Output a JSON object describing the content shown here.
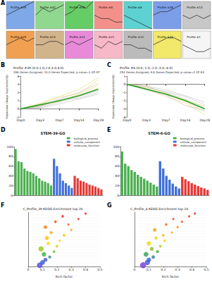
{
  "chart_data": [
    {
      "type": "small_multiples",
      "annotations": [
        "A"
      ],
      "ylim": [
        -4,
        4
      ],
      "tick_labels": false,
      "series": [
        {
          "name": "Profile #39",
          "color": "#7fa8e8",
          "values": [
            0,
            1,
            2,
            3,
            4
          ]
        },
        {
          "name": "Profile #42",
          "color": "#90d890",
          "values": [
            0,
            2,
            1,
            2,
            3
          ]
        },
        {
          "name": "Profile #46",
          "color": "#66cc66",
          "values": [
            0,
            1,
            3,
            2,
            4
          ]
        },
        {
          "name": "Profile #8",
          "color": "#f4908a",
          "values": [
            0,
            -1,
            -1,
            -2,
            -2
          ]
        },
        {
          "name": "Profile #6",
          "color": "#5ed2d2",
          "values": [
            0,
            -1,
            -2,
            -3,
            -4
          ]
        },
        {
          "name": "Profile #38",
          "color": "#7c9ee8",
          "values": [
            0,
            1,
            1,
            2,
            3
          ]
        },
        {
          "name": "Profile #10",
          "color": "#c8c8c8",
          "values": [
            0,
            -1,
            0,
            -1,
            0
          ]
        },
        {
          "name": "Profile #29",
          "color": "#f0a050",
          "values": [
            0,
            1,
            2,
            1,
            2
          ]
        },
        {
          "name": "Profile #14",
          "color": "#d2b48c",
          "values": [
            0,
            0,
            1,
            1,
            0
          ]
        },
        {
          "name": "Profile #33",
          "color": "#e88ad8",
          "values": [
            0,
            1,
            0,
            1,
            2
          ]
        },
        {
          "name": "Profile #21",
          "color": "#f7b8c8",
          "values": [
            0,
            -1,
            1,
            0,
            1
          ]
        },
        {
          "name": "Profile #12",
          "color": "#bbbbbb",
          "values": [
            0,
            0,
            -1,
            -1,
            -2
          ]
        },
        {
          "name": "Profile #40",
          "color": "#f2e86a",
          "values": [
            0,
            1,
            2,
            2,
            1
          ]
        },
        {
          "name": "Profile #1",
          "color": "#f5f5f5",
          "values": [
            0,
            -1,
            -2,
            -2,
            -1
          ]
        }
      ]
    },
    {
      "type": "line",
      "annotations": [
        "B"
      ],
      "title": "Profile #39 (0.0,1.0,2.0,3.0,4.0)",
      "subtitle": "286 Genes Assigned; 10.0 Genes Expected; p-value=1.4E-97",
      "ylabel": "Expression Change (log2(v(i)/v(0)))",
      "x": [
        "Day0",
        "Day3",
        "Day7",
        "Day14",
        "Day28"
      ],
      "ylim": [
        -1,
        4
      ],
      "yticks": [
        -1,
        0,
        1,
        2,
        3,
        4
      ],
      "series": [
        {
          "color": "#b0b0b0",
          "line_style": "thin",
          "values": [
            0,
            0.3,
            1.2,
            2.0,
            3.1
          ]
        },
        {
          "color": "#e6c84a",
          "line_style": "thin",
          "values": [
            0,
            0.5,
            1.0,
            1.6,
            2.6
          ]
        },
        {
          "color": "#b0b0b0",
          "line_style": "thin",
          "values": [
            0,
            0.2,
            0.8,
            1.5,
            2.2
          ]
        },
        {
          "color": "#e6c84a",
          "line_style": "thin",
          "values": [
            0,
            0.6,
            1.4,
            1.9,
            3.5
          ]
        },
        {
          "color": "#b0b0b0",
          "line_style": "thin",
          "values": [
            0,
            0.1,
            0.6,
            1.2,
            1.8
          ]
        },
        {
          "color": "#e6c84a",
          "line_style": "thin",
          "values": [
            0,
            0.4,
            0.9,
            1.8,
            2.9
          ]
        },
        {
          "color": "#b0b0b0",
          "line_style": "thin",
          "values": [
            0,
            0.3,
            1.1,
            1.3,
            2.0
          ]
        },
        {
          "color": "#e6c84a",
          "line_style": "thin",
          "values": [
            0,
            0.7,
            1.5,
            2.4,
            3.8
          ]
        },
        {
          "color": "#2ca02c",
          "line_style": "thick",
          "values": [
            0,
            0.5,
            1.0,
            1.6,
            2.4
          ]
        }
      ]
    },
    {
      "type": "line",
      "annotations": [
        "C"
      ],
      "title": "Profile #6 (0.0,-1.0,-2.0,-3.0,-4.0)",
      "subtitle": "254 Genes Assigned; 9.8 Genes Expected; p-value=2.1E-84",
      "ylabel": "Expression Change (log2(v(i)/v(0)))",
      "x": [
        "Day0",
        "Day3",
        "Day7",
        "Day14",
        "Day28"
      ],
      "ylim": [
        -4,
        1
      ],
      "yticks": [
        -4,
        -3,
        -2,
        -1,
        0,
        1
      ],
      "series": [
        {
          "color": "#b0b0b0",
          "line_style": "thin",
          "values": [
            0,
            -0.3,
            -1.0,
            -1.8,
            -2.9
          ]
        },
        {
          "color": "#e6c84a",
          "line_style": "thin",
          "values": [
            0,
            -0.5,
            -1.2,
            -2.1,
            -3.4
          ]
        },
        {
          "color": "#b0b0b0",
          "line_style": "thin",
          "values": [
            0,
            -0.2,
            -0.7,
            -1.4,
            -2.2
          ]
        },
        {
          "color": "#e6c84a",
          "line_style": "thin",
          "values": [
            0,
            -0.6,
            -1.5,
            -2.3,
            -3.7
          ]
        },
        {
          "color": "#b0b0b0",
          "line_style": "thin",
          "values": [
            0,
            -0.4,
            -0.9,
            -1.5,
            -2.5
          ]
        },
        {
          "color": "#e6c84a",
          "line_style": "thin",
          "values": [
            0,
            -0.2,
            -1.1,
            -1.9,
            -2.7
          ]
        },
        {
          "color": "#b0b0b0",
          "line_style": "thin",
          "values": [
            0,
            -0.7,
            -1.3,
            -2.6,
            -3.2
          ]
        },
        {
          "color": "#2ca02c",
          "line_style": "thick",
          "values": [
            0,
            -0.6,
            -1.2,
            -2.0,
            -3.0
          ]
        }
      ]
    },
    {
      "type": "bar",
      "annotations": [
        "D"
      ],
      "title": "STEM-39-GO",
      "legend": "top-right",
      "categories": [
        null,
        null,
        null,
        null,
        null,
        null,
        null,
        null,
        null,
        null,
        null,
        null,
        null,
        null,
        null,
        null,
        null,
        null,
        null,
        null,
        null,
        null,
        null,
        null,
        null,
        null,
        null,
        null,
        null,
        null
      ],
      "ylim": [
        0,
        100
      ],
      "yticks": [
        0,
        20,
        40,
        60,
        80,
        100
      ],
      "series": [
        {
          "name": "biological_process",
          "color": "#4caf50",
          "values": [
            95,
            70,
            68,
            55,
            50,
            48,
            45,
            40,
            35,
            30,
            28,
            25,
            20,
            null,
            null,
            null,
            null,
            null,
            null,
            null,
            null,
            null,
            null,
            null,
            null,
            null,
            null,
            null,
            null,
            null
          ]
        },
        {
          "name": "cellular_component",
          "color": "#3f6fd8",
          "values": [
            null,
            null,
            null,
            null,
            null,
            null,
            null,
            null,
            null,
            null,
            null,
            null,
            null,
            75,
            60,
            45,
            30,
            25,
            20,
            15,
            null,
            null,
            null,
            null,
            null,
            null,
            null,
            null,
            null,
            null
          ]
        },
        {
          "name": "molecular_function",
          "color": "#e53935",
          "values": [
            null,
            null,
            null,
            null,
            null,
            null,
            null,
            null,
            null,
            null,
            null,
            null,
            null,
            null,
            null,
            null,
            null,
            null,
            null,
            null,
            40,
            35,
            30,
            28,
            25,
            22,
            20,
            18,
            15,
            12
          ]
        }
      ]
    },
    {
      "type": "bar",
      "annotations": [
        "E"
      ],
      "title": "STEM-6-GO",
      "legend": "top-right",
      "categories": [
        null,
        null,
        null,
        null,
        null,
        null,
        null,
        null,
        null,
        null,
        null,
        null,
        null,
        null,
        null,
        null,
        null,
        null,
        null,
        null,
        null,
        null,
        null,
        null,
        null,
        null,
        null,
        null
      ],
      "ylim": [
        0,
        100
      ],
      "yticks": [
        0,
        20,
        40,
        60,
        80,
        100
      ],
      "series": [
        {
          "name": "biological_process",
          "color": "#4caf50",
          "values": [
            90,
            65,
            60,
            52,
            48,
            42,
            38,
            34,
            30,
            26,
            22,
            18,
            null,
            null,
            null,
            null,
            null,
            null,
            null,
            null,
            null,
            null,
            null,
            null,
            null,
            null,
            null,
            null
          ]
        },
        {
          "name": "cellular_component",
          "color": "#3f6fd8",
          "values": [
            null,
            null,
            null,
            null,
            null,
            null,
            null,
            null,
            null,
            null,
            null,
            null,
            70,
            55,
            40,
            32,
            24,
            18,
            14,
            null,
            null,
            null,
            null,
            null,
            null,
            null,
            null,
            null
          ]
        },
        {
          "name": "molecular_function",
          "color": "#e53935",
          "values": [
            null,
            null,
            null,
            null,
            null,
            null,
            null,
            null,
            null,
            null,
            null,
            null,
            null,
            null,
            null,
            null,
            null,
            null,
            null,
            38,
            33,
            29,
            25,
            22,
            19,
            16,
            14,
            11
          ]
        }
      ]
    },
    {
      "type": "scatter",
      "annotations": [
        "F"
      ],
      "title": "C_Profile_39 KEGG Enrichment top 20",
      "xlabel": "Rich factor",
      "categories": [
        null,
        null,
        null,
        null,
        null,
        null,
        null,
        null,
        null,
        null,
        null,
        null,
        null,
        null,
        null,
        null,
        null,
        null,
        null,
        null
      ],
      "xlim": [
        0,
        0.5
      ],
      "xticks": [
        0,
        0.1,
        0.2,
        0.3,
        0.4,
        0.5
      ],
      "qvalue_range": [
        0,
        1
      ],
      "series": [
        {
          "values": [
            0.08,
            0.1,
            0.12,
            0.15,
            0.11,
            0.18,
            0.09,
            0.2,
            0.14,
            0.22,
            0.13,
            0.25,
            0.16,
            0.3,
            0.12,
            0.28,
            0.19,
            0.35,
            0.24,
            0.4
          ],
          "size": [
            10,
            8,
            6,
            4,
            7,
            3,
            9,
            3,
            5,
            2,
            6,
            3,
            4,
            2,
            5,
            2,
            3,
            2,
            3,
            2
          ],
          "qvalue": [
            0.9,
            0.8,
            0.85,
            0.7,
            0.6,
            0.55,
            0.5,
            0.45,
            0.4,
            0.35,
            0.3,
            0.3,
            0.25,
            0.2,
            0.15,
            0.1,
            0.08,
            0.05,
            0.03,
            0.01
          ]
        }
      ]
    },
    {
      "type": "scatter",
      "annotations": [
        "G"
      ],
      "title": "C_Profile_6 KEGG Enrichment top 20",
      "xlabel": "Rich factor",
      "categories": [
        null,
        null,
        null,
        null,
        null,
        null,
        null,
        null,
        null,
        null,
        null,
        null,
        null,
        null,
        null,
        null,
        null,
        null,
        null,
        null
      ],
      "xlim": [
        0,
        0.5
      ],
      "xticks": [
        0,
        0.1,
        0.2,
        0.3,
        0.4,
        0.5
      ],
      "qvalue_range": [
        0,
        1
      ],
      "series": [
        {
          "values": [
            0.06,
            0.09,
            0.1,
            0.13,
            0.08,
            0.16,
            0.12,
            0.18,
            0.1,
            0.21,
            0.15,
            0.2,
            0.26,
            0.14,
            0.3,
            0.22,
            0.33,
            0.27,
            0.38,
            0.42
          ],
          "size": [
            11,
            9,
            7,
            5,
            8,
            4,
            6,
            3,
            7,
            3,
            4,
            3,
            2,
            5,
            2,
            3,
            2,
            2,
            2,
            2
          ],
          "qvalue": [
            0.95,
            0.85,
            0.8,
            0.72,
            0.65,
            0.6,
            0.52,
            0.48,
            0.42,
            0.38,
            0.33,
            0.28,
            0.24,
            0.2,
            0.16,
            0.12,
            0.09,
            0.06,
            0.04,
            0.02
          ]
        }
      ]
    }
  ]
}
